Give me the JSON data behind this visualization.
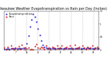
{
  "title": "Milwaukee Weather Evapotranspiration vs Rain per Day (Inches)",
  "title_fontsize": 3.5,
  "et_color": "#0000cc",
  "rain_color": "#cc0000",
  "background_color": "#ffffff",
  "grid_color": "#888888",
  "ylim": [
    0,
    1.5
  ],
  "num_days": 60,
  "et_values": [
    0.04,
    0.04,
    0.05,
    0.04,
    0.05,
    0.06,
    0.05,
    0.06,
    0.05,
    0.06,
    0.05,
    0.06,
    0.07,
    0.08,
    0.25,
    0.55,
    0.9,
    1.18,
    1.38,
    1.28,
    1.08,
    0.82,
    0.58,
    0.36,
    0.2,
    0.12,
    0.08,
    0.07,
    0.06,
    0.06,
    0.05,
    0.06,
    0.05,
    0.05,
    0.06,
    0.05,
    0.06,
    0.05,
    0.07,
    0.06,
    0.05,
    0.06,
    0.05,
    0.05,
    0.06,
    0.05,
    0.07,
    0.06,
    0.05,
    0.06,
    0.07,
    0.06,
    0.08,
    0.07,
    0.06,
    0.05,
    0.06,
    0.05,
    0.07,
    0.06
  ],
  "rain_values": [
    0.08,
    0.0,
    0.12,
    0.0,
    0.18,
    0.06,
    0.0,
    0.1,
    0.0,
    0.15,
    0.04,
    0.2,
    0.09,
    0.0,
    0.06,
    0.1,
    0.0,
    0.04,
    0.0,
    0.15,
    0.22,
    0.1,
    0.06,
    0.13,
    0.08,
    0.04,
    0.18,
    0.06,
    0.1,
    0.0,
    0.13,
    0.08,
    0.04,
    0.16,
    0.06,
    0.1,
    0.18,
    0.04,
    0.08,
    0.13,
    0.06,
    0.16,
    0.1,
    0.04,
    0.2,
    0.06,
    0.08,
    0.13,
    0.04,
    0.18,
    0.08,
    0.04,
    0.13,
    0.06,
    0.1,
    0.16,
    0.04,
    0.08,
    0.13,
    0.06
  ],
  "vgrid_positions": [
    7,
    14,
    21,
    28,
    35,
    42,
    49,
    56
  ],
  "marker_size": 1.0,
  "legend_labels": [
    "Evapotranspiration",
    "Rain"
  ],
  "legend_fontsize": 2.5,
  "ytick_labels": [
    "0",
    "0.5",
    "1",
    "1.5"
  ],
  "ytick_values": [
    0,
    0.5,
    1.0,
    1.5
  ]
}
